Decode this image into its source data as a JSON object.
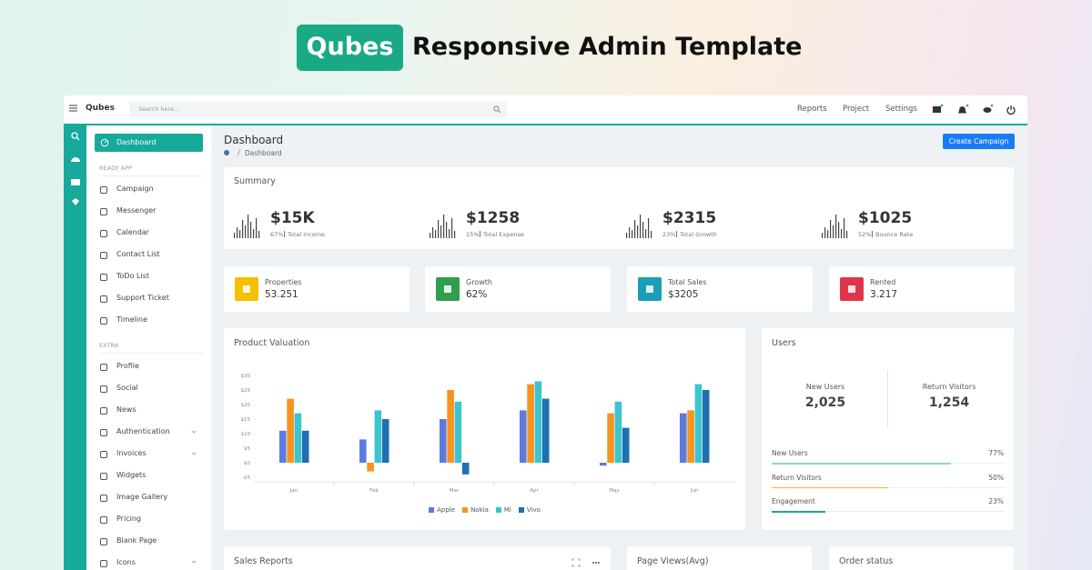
{
  "banner": {
    "brand": "Qubes",
    "title": "Responsive Admin Template"
  },
  "topbar": {
    "brand": "Qubes",
    "search_placeholder": "Search here...",
    "nav": [
      "Reports",
      "Project",
      "Settings"
    ]
  },
  "sidebar": {
    "active": "Dashboard",
    "sections": [
      {
        "heading": "READY APP",
        "items": [
          "Campaign",
          "Messenger",
          "Calendar",
          "Contact List",
          "ToDo List",
          "Support Ticket",
          "Timeline"
        ]
      },
      {
        "heading": "EXTRA",
        "items": [
          "Profile",
          "Social",
          "News",
          "Authentication",
          "Invoices",
          "Widgets",
          "Image Gallery",
          "Pricing",
          "Blank Page",
          "Icons"
        ]
      }
    ]
  },
  "page": {
    "title": "Dashboard",
    "breadcrumb": "Dashboard",
    "button": "Create Campaign"
  },
  "summary": {
    "title": "Summary",
    "items": [
      {
        "value": "$15K",
        "pct": "67%",
        "label": "Total income"
      },
      {
        "value": "$1258",
        "pct": "15%",
        "label": "Total Expense"
      },
      {
        "value": "$2315",
        "pct": "23%",
        "label": "Total Growth"
      },
      {
        "value": "$1025",
        "pct": "52%",
        "label": "Bounce Rate"
      }
    ]
  },
  "stats": [
    {
      "label": "Properties",
      "value": "53.251",
      "color": "#f5c000"
    },
    {
      "label": "Growth",
      "value": "62%",
      "color": "#2e9e4f"
    },
    {
      "label": "Total Sales",
      "value": "$3205",
      "color": "#1b9fb6"
    },
    {
      "label": "Rented",
      "value": "3.217",
      "color": "#e0344b"
    }
  ],
  "chart_data": {
    "type": "bar",
    "title": "Product Valuation",
    "categories": [
      "Jan",
      "Feb",
      "Mar",
      "Apr",
      "May",
      "Jun"
    ],
    "series": [
      {
        "name": "Apple",
        "color": "#5b7be0",
        "values": [
          11,
          8,
          15,
          18,
          -1,
          17
        ]
      },
      {
        "name": "Nokia",
        "color": "#f7931e",
        "values": [
          22,
          -3,
          25,
          27,
          17,
          18
        ]
      },
      {
        "name": "Mi",
        "color": "#3cc4cf",
        "values": [
          17,
          18,
          21,
          28,
          21,
          27
        ]
      },
      {
        "name": "Vivo",
        "color": "#1f6fb2",
        "values": [
          11,
          15,
          -4,
          22,
          12,
          25
        ]
      }
    ],
    "ylim": [
      -5,
      30
    ],
    "yticks": [
      {
        "value": -5,
        "label": "-$5"
      },
      {
        "value": 0,
        "label": "$0"
      },
      {
        "value": 5,
        "label": "$5"
      },
      {
        "value": 10,
        "label": "$10"
      },
      {
        "value": 15,
        "label": "$15"
      },
      {
        "value": 20,
        "label": "$20"
      },
      {
        "value": 25,
        "label": "$25"
      },
      {
        "value": 30,
        "label": "$30"
      }
    ],
    "legend": "bottom"
  },
  "users": {
    "title": "Users",
    "counters": [
      {
        "label": "New Users",
        "value": "2,025"
      },
      {
        "label": "Return Visitors",
        "value": "1,254"
      }
    ],
    "progress": [
      {
        "name": "New Users",
        "value": 77,
        "label": "77%",
        "color": "#8fd3cf"
      },
      {
        "name": "Return Visitors",
        "value": 50,
        "label": "50%",
        "color": "#f5b041"
      },
      {
        "name": "Engagement",
        "value": 23,
        "label": "23%",
        "color": "#17a99b"
      }
    ]
  },
  "bottom_cards": [
    "Sales Reports",
    "Page Views(Avg)",
    "Order status"
  ]
}
